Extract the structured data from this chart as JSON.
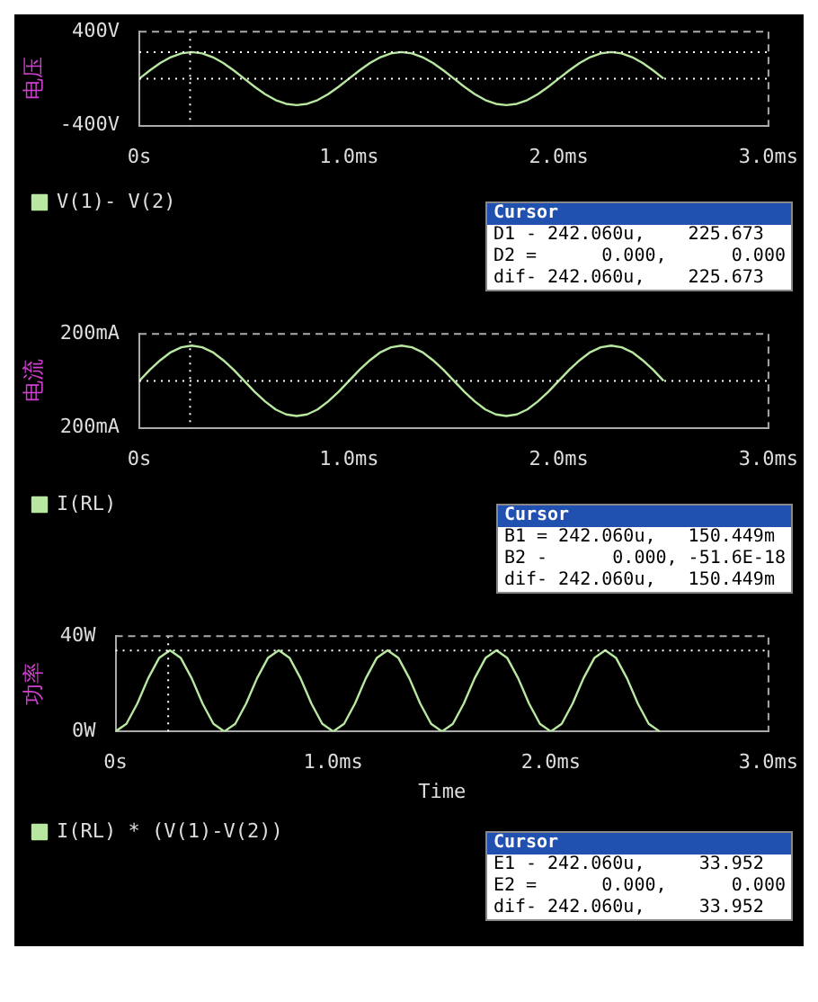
{
  "chart_data": [
    {
      "type": "line",
      "ylabel": "电压",
      "x": [
        0,
        0.05,
        0.1,
        0.15,
        0.2,
        0.25,
        0.3,
        0.35,
        0.4,
        0.45,
        0.5,
        0.55,
        0.6,
        0.65,
        0.7,
        0.75,
        0.8,
        0.85,
        0.9,
        0.95,
        1,
        1.05,
        1.1,
        1.15,
        1.2,
        1.25,
        1.3,
        1.35,
        1.4,
        1.45,
        1.5,
        1.55,
        1.6,
        1.65,
        1.7,
        1.75,
        1.8,
        1.85,
        1.9,
        1.95,
        2,
        2.05,
        2.1,
        2.15,
        2.2,
        2.25,
        2.3,
        2.35,
        2.4,
        2.45,
        2.5
      ],
      "series": [
        {
          "name": "V(1)- V(2)",
          "color": "#b8e8a0",
          "values": [
            0,
            70,
            133,
            183,
            215,
            226,
            215,
            183,
            133,
            70,
            0,
            -70,
            -133,
            -183,
            -215,
            -226,
            -215,
            -183,
            -133,
            -70,
            0,
            70,
            133,
            183,
            215,
            226,
            215,
            183,
            133,
            70,
            0,
            -70,
            -133,
            -183,
            -215,
            -226,
            -215,
            -183,
            -133,
            -70,
            0,
            70,
            133,
            183,
            215,
            226,
            215,
            183,
            133,
            70,
            0
          ]
        }
      ],
      "xlim": [
        0,
        3
      ],
      "xticks": [
        {
          "value": 0,
          "label": "0s"
        },
        {
          "value": 1,
          "label": "1.0ms"
        },
        {
          "value": 2,
          "label": "2.0ms"
        },
        {
          "value": 3,
          "label": "3.0ms"
        }
      ],
      "ylim": [
        -400,
        400
      ],
      "yticks": [
        {
          "value": -400,
          "label": "-400V"
        },
        {
          "value": 400,
          "label": "400V"
        }
      ],
      "ref_lines": [
        {
          "axis": "x",
          "value": 0.242,
          "color": "#ffffff",
          "line_style": "dotted"
        },
        {
          "axis": "y",
          "value": 225.673,
          "color": "#ffffff",
          "line_style": "dotted"
        },
        {
          "axis": "y",
          "value": 0,
          "color": "#ffffff",
          "line_style": "dotted"
        }
      ],
      "marker": "none",
      "legend": "bottom left",
      "annotations": [
        "Cursor",
        "D1 - 242.060u,    225.673",
        "D2 =      0.000,      0.000",
        "dif- 242.060u,    225.673"
      ]
    },
    {
      "type": "line",
      "ylabel": "电流",
      "x": [
        0,
        0.05,
        0.1,
        0.15,
        0.2,
        0.25,
        0.3,
        0.35,
        0.4,
        0.45,
        0.5,
        0.55,
        0.6,
        0.65,
        0.7,
        0.75,
        0.8,
        0.85,
        0.9,
        0.95,
        1,
        1.05,
        1.1,
        1.15,
        1.2,
        1.25,
        1.3,
        1.35,
        1.4,
        1.45,
        1.5,
        1.55,
        1.6,
        1.65,
        1.7,
        1.75,
        1.8,
        1.85,
        1.9,
        1.95,
        2,
        2.05,
        2.1,
        2.15,
        2.2,
        2.25,
        2.3,
        2.35,
        2.4,
        2.45,
        2.5
      ],
      "series": [
        {
          "name": "I(RL)",
          "color": "#b8e8a0",
          "values": [
            0,
            47,
            88,
            122,
            143,
            150,
            143,
            122,
            88,
            47,
            0,
            -47,
            -88,
            -122,
            -143,
            -150,
            -143,
            -122,
            -88,
            -47,
            0,
            47,
            88,
            122,
            143,
            150,
            143,
            122,
            88,
            47,
            0,
            -47,
            -88,
            -122,
            -143,
            -150,
            -143,
            -122,
            -88,
            -47,
            0,
            47,
            88,
            122,
            143,
            150,
            143,
            122,
            88,
            47,
            0
          ]
        }
      ],
      "xlim": [
        0,
        3
      ],
      "xticks": [
        {
          "value": 0,
          "label": "0s"
        },
        {
          "value": 1,
          "label": "1.0ms"
        },
        {
          "value": 2,
          "label": "2.0ms"
        },
        {
          "value": 3,
          "label": "3.0ms"
        }
      ],
      "ylim": [
        -200,
        200
      ],
      "yticks": [
        {
          "value": -200,
          "label": "200mA"
        },
        {
          "value": 200,
          "label": "200mA"
        }
      ],
      "ref_lines": [
        {
          "axis": "x",
          "value": 0.242,
          "color": "#ffffff",
          "line_style": "dotted"
        },
        {
          "axis": "y",
          "value": 0,
          "color": "#ffffff",
          "line_style": "dotted"
        }
      ],
      "marker": "none",
      "legend": "bottom left",
      "annotations": [
        "Cursor",
        "B1 = 242.060u,   150.449m",
        "B2 -      0.000, -51.6E-18",
        "dif- 242.060u,   150.449m"
      ]
    },
    {
      "type": "line",
      "ylabel": "功率",
      "xlabel": "Time",
      "x": [
        0,
        0.05,
        0.1,
        0.15,
        0.2,
        0.25,
        0.3,
        0.35,
        0.4,
        0.45,
        0.5,
        0.55,
        0.6,
        0.65,
        0.7,
        0.75,
        0.8,
        0.85,
        0.9,
        0.95,
        1,
        1.05,
        1.1,
        1.15,
        1.2,
        1.25,
        1.3,
        1.35,
        1.4,
        1.45,
        1.5,
        1.55,
        1.6,
        1.65,
        1.7,
        1.75,
        1.8,
        1.85,
        1.9,
        1.95,
        2,
        2.05,
        2.1,
        2.15,
        2.2,
        2.25,
        2.3,
        2.35,
        2.4,
        2.45,
        2.5
      ],
      "series": [
        {
          "name": "I(RL) * (V(1)-V(2))",
          "color": "#b8e8a0",
          "values": [
            0,
            3.2,
            11.7,
            22.3,
            30.8,
            34,
            30.8,
            22.3,
            11.7,
            3.2,
            0,
            3.2,
            11.7,
            22.3,
            30.8,
            34,
            30.8,
            22.3,
            11.7,
            3.2,
            0,
            3.2,
            11.7,
            22.3,
            30.8,
            34,
            30.8,
            22.3,
            11.7,
            3.2,
            0,
            3.2,
            11.7,
            22.3,
            30.8,
            34,
            30.8,
            22.3,
            11.7,
            3.2,
            0,
            3.2,
            11.7,
            22.3,
            30.8,
            34,
            30.8,
            22.3,
            11.7,
            3.2,
            0
          ]
        }
      ],
      "xlim": [
        0,
        3
      ],
      "xticks": [
        {
          "value": 0,
          "label": "0s"
        },
        {
          "value": 1,
          "label": "1.0ms"
        },
        {
          "value": 2,
          "label": "2.0ms"
        },
        {
          "value": 3,
          "label": "3.0ms"
        }
      ],
      "ylim": [
        0,
        40
      ],
      "yticks": [
        {
          "value": 0,
          "label": "0W"
        },
        {
          "value": 40,
          "label": "40W"
        }
      ],
      "ref_lines": [
        {
          "axis": "x",
          "value": 0.242,
          "color": "#ffffff",
          "line_style": "dotted"
        },
        {
          "axis": "y",
          "value": 33.952,
          "color": "#ffffff",
          "line_style": "dotted"
        }
      ],
      "marker": "none",
      "legend": "bottom left",
      "annotations": [
        "Cursor",
        "E1 - 242.060u,     33.952",
        "E2 =      0.000,      0.000",
        "dif- 242.060u,     33.952"
      ]
    }
  ]
}
